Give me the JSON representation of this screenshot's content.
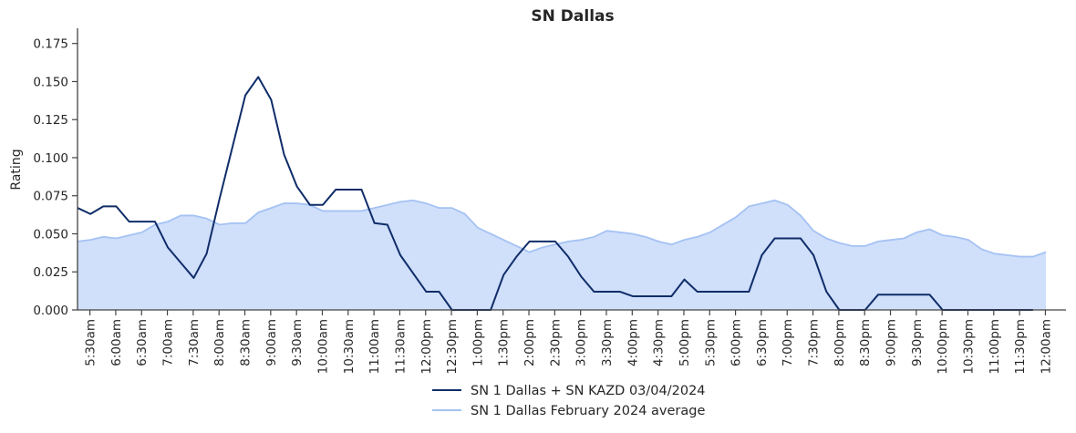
{
  "chart_data": {
    "type": "line",
    "title": "SN Dallas",
    "xlabel": "",
    "ylabel": "Rating",
    "ylim": [
      0,
      0.185
    ],
    "yticks": [
      "0.000",
      "0.025",
      "0.050",
      "0.075",
      "0.100",
      "0.125",
      "0.150",
      "0.175"
    ],
    "ytick_values": [
      0,
      0.025,
      0.05,
      0.075,
      0.1,
      0.125,
      0.15,
      0.175
    ],
    "x_start": "5:15am",
    "x_step_minutes": 15,
    "xtick_labels": [
      "5:30am",
      "6:00am",
      "6:30am",
      "7:00am",
      "7:30am",
      "8:00am",
      "8:30am",
      "9:00am",
      "9:30am",
      "10:00am",
      "10:30am",
      "11:00am",
      "11:30am",
      "12:00pm",
      "12:30pm",
      "1:00pm",
      "1:30pm",
      "2:00pm",
      "2:30pm",
      "3:00pm",
      "3:30pm",
      "4:00pm",
      "4:30pm",
      "5:00pm",
      "5:30pm",
      "6:00pm",
      "6:30pm",
      "7:00pm",
      "7:30pm",
      "8:00pm",
      "8:30pm",
      "9:00pm",
      "9:30pm",
      "10:00pm",
      "10:30pm",
      "11:00pm",
      "11:30pm",
      "12:00am"
    ],
    "legend_position": "bottom-center",
    "grid": false,
    "series": [
      {
        "name": "SN 1 Dallas + SN KAZD 03/04/2024",
        "style": "line",
        "color": "#0f2d69",
        "values": [
          0.067,
          0.063,
          0.068,
          0.068,
          0.058,
          0.058,
          0.058,
          0.041,
          0.031,
          0.021,
          0.037,
          0.073,
          0.107,
          0.141,
          0.153,
          0.138,
          0.102,
          0.081,
          0.069,
          0.069,
          0.079,
          0.079,
          0.079,
          0.057,
          0.056,
          0.036,
          0.024,
          0.012,
          0.012,
          0,
          0,
          0,
          0,
          0.023,
          0.035,
          0.045,
          0.045,
          0.045,
          0.035,
          0.022,
          0.012,
          0.012,
          0.012,
          0.009,
          0.009,
          0.009,
          0.009,
          0.02,
          0.012,
          0.012,
          0.012,
          0.012,
          0.012,
          0.036,
          0.047,
          0.047,
          0.047,
          0.036,
          0.012,
          0,
          0,
          0,
          0.01,
          0.01,
          0.01,
          0.01,
          0.01,
          0,
          0,
          0,
          0,
          0,
          0,
          0,
          0
        ]
      },
      {
        "name": "SN 1 Dallas February 2024 average",
        "style": "area",
        "color": "#a4c2f4",
        "fill": "#d0dffa",
        "values": [
          0.045,
          0.046,
          0.048,
          0.047,
          0.049,
          0.051,
          0.056,
          0.058,
          0.062,
          0.062,
          0.06,
          0.056,
          0.057,
          0.057,
          0.064,
          0.067,
          0.07,
          0.07,
          0.069,
          0.065,
          0.065,
          0.065,
          0.065,
          0.067,
          0.069,
          0.071,
          0.072,
          0.07,
          0.067,
          0.067,
          0.063,
          0.054,
          0.05,
          0.046,
          0.042,
          0.038,
          0.041,
          0.043,
          0.045,
          0.046,
          0.048,
          0.052,
          0.051,
          0.05,
          0.048,
          0.045,
          0.043,
          0.046,
          0.048,
          0.051,
          0.056,
          0.061,
          0.068,
          0.07,
          0.072,
          0.069,
          0.062,
          0.052,
          0.047,
          0.044,
          0.042,
          0.042,
          0.045,
          0.046,
          0.047,
          0.051,
          0.053,
          0.049,
          0.048,
          0.046,
          0.04,
          0.037,
          0.036,
          0.035,
          0.035,
          0.038
        ]
      }
    ]
  }
}
